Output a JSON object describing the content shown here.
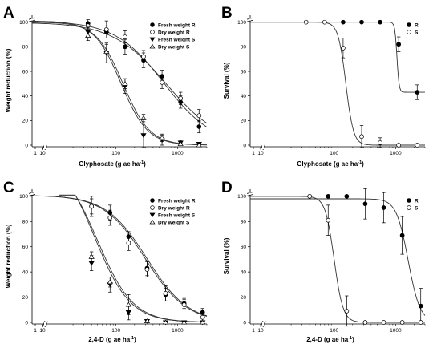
{
  "chart_data": [
    {
      "panel": "A",
      "type": "scatter",
      "xlabel": "Glyphosate (g ae ha",
      "xlabel_sup": "-1",
      "xlabel_end": ")",
      "ylabel": "Weight reduction (%)",
      "xscale": "log",
      "xlim": [
        10,
        3000
      ],
      "ylim": [
        0,
        105
      ],
      "xticks": [
        {
          "v": 100,
          "label": "100"
        },
        {
          "v": 1000,
          "label": "1000"
        }
      ],
      "yticks": [
        0,
        20,
        40,
        60,
        80,
        100
      ],
      "left_ticks": [
        {
          "label": "1"
        },
        {
          "label": "10"
        }
      ],
      "legend_position": "top-right",
      "series": [
        {
          "name": "Fresh weight R",
          "marker": "circle-filled",
          "x": [
            35,
            70,
            140,
            280,
            560,
            1120,
            2240
          ],
          "y": [
            99,
            92,
            80,
            69,
            56,
            35,
            15
          ],
          "err": [
            3,
            5,
            6,
            6,
            5,
            5,
            5
          ],
          "fit": {
            "top": 101,
            "ec50": 600,
            "slope": 1.1,
            "bottom": 0
          }
        },
        {
          "name": "Dry weight R",
          "marker": "circle-open",
          "x": [
            35,
            70,
            140,
            280,
            560,
            1120,
            2240
          ],
          "y": [
            97,
            94,
            88,
            72,
            51,
            38,
            24
          ],
          "err": [
            3,
            7,
            5,
            5,
            5,
            5,
            5
          ],
          "fit": {
            "top": 100,
            "ec50": 650,
            "slope": 1.0,
            "bottom": 0
          }
        },
        {
          "name": "Fresh weight S",
          "marker": "triangle-down-filled",
          "x": [
            35,
            70,
            140,
            280,
            560,
            1120,
            2240
          ],
          "y": [
            92,
            75,
            48,
            8,
            4,
            2,
            1
          ],
          "err": [
            4,
            8,
            6,
            10,
            4,
            2,
            1
          ],
          "fit": {
            "top": 101,
            "ec50": 120,
            "slope": 2.0,
            "bottom": 0
          }
        },
        {
          "name": "Dry weight S",
          "marker": "triangle-up-open",
          "x": [
            35,
            70,
            140,
            280,
            560,
            1120,
            2240
          ],
          "y": [
            89,
            76,
            50,
            22,
            6,
            1,
            0
          ],
          "err": [
            4,
            6,
            4,
            3,
            3,
            1,
            1
          ],
          "fit": {
            "top": 100,
            "ec50": 130,
            "slope": 2.0,
            "bottom": 0
          }
        }
      ]
    },
    {
      "panel": "B",
      "type": "scatter",
      "xlabel": "Glyphosate (g ae ha",
      "xlabel_sup": "-1",
      "xlabel_end": ")",
      "ylabel": "Survival (%)",
      "xscale": "log",
      "xlim": [
        10,
        3000
      ],
      "ylim": [
        0,
        105
      ],
      "xticks": [
        {
          "v": 100,
          "label": "100"
        },
        {
          "v": 1000,
          "label": "1000"
        }
      ],
      "yticks": [
        0,
        20,
        40,
        60,
        80,
        100
      ],
      "left_ticks": [
        {
          "label": "1"
        },
        {
          "label": "10"
        }
      ],
      "legend_position": "top-right",
      "series": [
        {
          "name": "R",
          "marker": "circle-filled",
          "x": [
            140,
            280,
            560,
            1120,
            2240
          ],
          "y": [
            100,
            100,
            100,
            82,
            43
          ],
          "err": [
            0,
            0,
            0,
            6,
            6
          ],
          "fit": {
            "top": 100,
            "ec50": 1050,
            "slope": 25,
            "bottom": 43
          }
        },
        {
          "name": "S",
          "marker": "circle-open",
          "x": [
            35,
            70,
            140,
            280,
            560,
            1120,
            2240
          ],
          "y": [
            100,
            100,
            79,
            7,
            2,
            0,
            0
          ],
          "err": [
            0,
            0,
            8,
            9,
            4,
            0,
            0
          ],
          "fit": {
            "top": 100,
            "ec50": 155,
            "slope": 7,
            "bottom": 0
          }
        }
      ]
    },
    {
      "panel": "C",
      "type": "scatter",
      "xlabel": "2,4-D (g ae ha",
      "xlabel_sup": "-1",
      "xlabel_end": ")",
      "ylabel": "Weight reduction (%)",
      "xscale": "log",
      "xlim": [
        10,
        3000
      ],
      "ylim": [
        0,
        105
      ],
      "xticks": [
        {
          "v": 100,
          "label": "100"
        },
        {
          "v": 1000,
          "label": "1000"
        }
      ],
      "yticks": [
        0,
        20,
        40,
        60,
        80,
        100
      ],
      "left_ticks": [
        {
          "label": "1"
        },
        {
          "label": "10"
        }
      ],
      "legend_position": "top-right",
      "series": [
        {
          "name": "Fresh weight R",
          "marker": "circle-filled",
          "x": [
            40,
            80,
            160,
            320,
            640,
            1280,
            2560
          ],
          "y": [
            92,
            87,
            68,
            43,
            22,
            15,
            8
          ],
          "err": [
            8,
            6,
            4,
            6,
            5,
            4,
            3
          ],
          "fit": {
            "top": 101,
            "ec50": 300,
            "slope": 1.3,
            "bottom": 0
          }
        },
        {
          "name": "Dry weight R",
          "marker": "circle-open",
          "x": [
            40,
            80,
            160,
            320,
            640,
            1280,
            2560
          ],
          "y": [
            92,
            83,
            63,
            42,
            23,
            14,
            4
          ],
          "err": [
            6,
            6,
            6,
            6,
            6,
            4,
            3
          ],
          "fit": {
            "top": 101,
            "ec50": 320,
            "slope": 1.3,
            "bottom": 0
          }
        },
        {
          "name": "Fresh weight S",
          "marker": "triangle-down-filled",
          "x": [
            40,
            80,
            160,
            320,
            640,
            1280,
            2560
          ],
          "y": [
            47,
            30,
            8,
            1,
            0,
            0,
            0
          ],
          "err": [
            6,
            6,
            6,
            1,
            0,
            0,
            0
          ],
          "fit": {
            "top": 135,
            "ec50": 45,
            "slope": 1.5,
            "bottom": 0
          }
        },
        {
          "name": "Dry weight S",
          "marker": "triangle-up-open",
          "x": [
            40,
            80,
            160,
            320,
            640,
            1280,
            2560
          ],
          "y": [
            52,
            32,
            14,
            1,
            0,
            0,
            0
          ],
          "err": [
            4,
            4,
            8,
            1,
            0,
            0,
            0
          ],
          "fit": {
            "top": 130,
            "ec50": 50,
            "slope": 1.5,
            "bottom": 0
          }
        }
      ]
    },
    {
      "panel": "D",
      "type": "scatter",
      "xlabel": "2,4-D (g ae ha",
      "xlabel_sup": "-1",
      "xlabel_end": ")",
      "ylabel": "Survival (%)",
      "xscale": "log",
      "xlim": [
        10,
        3000
      ],
      "ylim": [
        0,
        105
      ],
      "xticks": [
        {
          "v": 100,
          "label": "100"
        },
        {
          "v": 1000,
          "label": "1000"
        }
      ],
      "yticks": [
        0,
        20,
        40,
        60,
        80,
        100
      ],
      "left_ticks": [
        {
          "label": "1"
        },
        {
          "label": "10"
        }
      ],
      "legend_position": "top-right",
      "series": [
        {
          "name": "R",
          "marker": "circle-filled",
          "x": [
            80,
            160,
            320,
            640,
            1280,
            2560
          ],
          "y": [
            100,
            100,
            94,
            91,
            69,
            13
          ],
          "err": [
            0,
            0,
            12,
            12,
            15,
            14
          ],
          "fit": {
            "top": 98,
            "ec50": 1600,
            "slope": 4.5,
            "bottom": 0
          }
        },
        {
          "name": "S",
          "marker": "circle-open",
          "x": [
            40,
            80,
            160,
            320,
            640,
            1280,
            2560
          ],
          "y": [
            100,
            81,
            9,
            0,
            0,
            0,
            0
          ],
          "err": [
            0,
            12,
            12,
            0,
            0,
            0,
            0
          ],
          "fit": {
            "top": 100,
            "ec50": 100,
            "slope": 6,
            "bottom": 0
          }
        }
      ]
    }
  ]
}
